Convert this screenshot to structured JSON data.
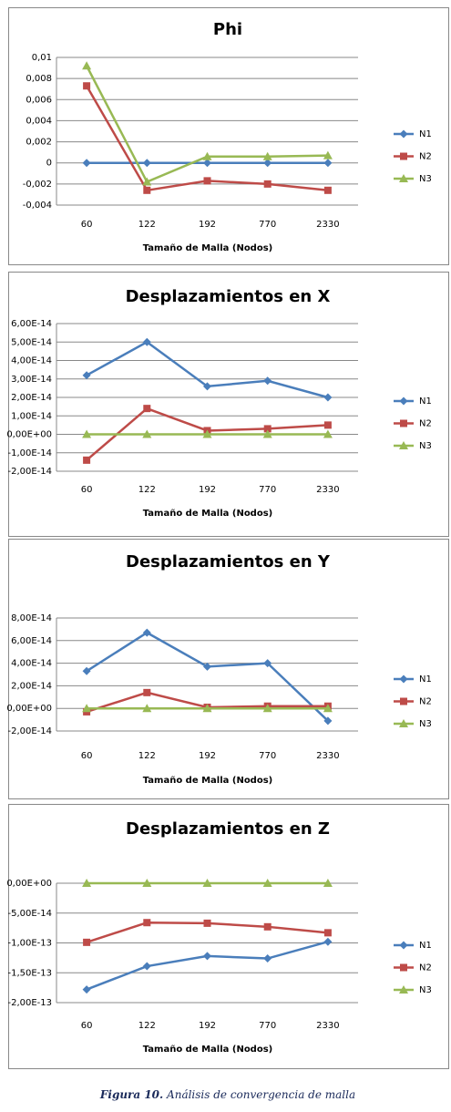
{
  "chart_data": [
    {
      "type": "line",
      "title": "Phi",
      "x_label": "Tamaño de Malla (Nodos)",
      "legend": "right",
      "grid": true,
      "categories": [
        "60",
        "122",
        "192",
        "770",
        "2330"
      ],
      "ylim": [
        -0.004,
        0.01
      ],
      "yticks": [
        {
          "value": -0.004,
          "label": "-0,004"
        },
        {
          "value": -0.002,
          "label": "-0,002"
        },
        0,
        {
          "value": 0.002,
          "label": "0,002"
        },
        {
          "value": 0.004,
          "label": "0,004"
        },
        {
          "value": 0.006,
          "label": "0,006"
        },
        {
          "value": 0.008,
          "label": "0,008"
        },
        {
          "value": 0.01,
          "label": "0,01"
        }
      ],
      "series": [
        {
          "name": "N1",
          "color": "#4a7ebb",
          "marker": "diamond",
          "values": [
            0,
            0,
            0,
            0,
            0
          ]
        },
        {
          "name": "N2",
          "color": "#be4b48",
          "marker": "square",
          "values": [
            0.0073,
            -0.0026,
            -0.0017,
            -0.002,
            -0.0026
          ]
        },
        {
          "name": "N3",
          "color": "#98b954",
          "marker": "triangle",
          "values": [
            0.0092,
            -0.0018,
            0.0006,
            0.0006,
            0.0007
          ]
        }
      ]
    },
    {
      "type": "line",
      "title": "Desplazamientos en X",
      "x_label": "Tamaño de Malla (Nodos)",
      "legend": "right",
      "grid": true,
      "categories": [
        "60",
        "122",
        "192",
        "770",
        "2330"
      ],
      "ylim": [
        -2e-14,
        6e-14
      ],
      "yticks": [
        {
          "value": -2e-14,
          "label": "-2,00E-14"
        },
        {
          "value": -1e-14,
          "label": "-1,00E-14"
        },
        {
          "value": 0,
          "label": "0,00E+00"
        },
        {
          "value": 1e-14,
          "label": "1,00E-14"
        },
        {
          "value": 2e-14,
          "label": "2,00E-14"
        },
        {
          "value": 3e-14,
          "label": "3,00E-14"
        },
        {
          "value": 4e-14,
          "label": "4,00E-14"
        },
        {
          "value": 5e-14,
          "label": "5,00E-14"
        },
        {
          "value": 6e-14,
          "label": "6,00E-14"
        }
      ],
      "series": [
        {
          "name": "N1",
          "color": "#4a7ebb",
          "marker": "diamond",
          "values": [
            3.2e-14,
            5e-14,
            2.6e-14,
            2.9e-14,
            2e-14
          ]
        },
        {
          "name": "N2",
          "color": "#be4b48",
          "marker": "square",
          "values": [
            -1.4e-14,
            1.4e-14,
            2e-15,
            3e-15,
            5e-15
          ]
        },
        {
          "name": "N3",
          "color": "#98b954",
          "marker": "triangle",
          "values": [
            0,
            0,
            0,
            0,
            0
          ]
        }
      ]
    },
    {
      "type": "line",
      "title": "Desplazamientos en Y",
      "x_label": "Tamaño de Malla (Nodos)",
      "legend": "right",
      "grid": true,
      "categories": [
        "60",
        "122",
        "192",
        "770",
        "2330"
      ],
      "ylim": [
        -2e-14,
        8e-14
      ],
      "yticks": [
        {
          "value": -2e-14,
          "label": "-2,00E-14"
        },
        {
          "value": 0,
          "label": "0,00E+00"
        },
        {
          "value": 2e-14,
          "label": "2,00E-14"
        },
        {
          "value": 4e-14,
          "label": "4,00E-14"
        },
        {
          "value": 6e-14,
          "label": "6,00E-14"
        },
        {
          "value": 8e-14,
          "label": "8,00E-14"
        }
      ],
      "series": [
        {
          "name": "N1",
          "color": "#4a7ebb",
          "marker": "diamond",
          "values": [
            3.3e-14,
            6.7e-14,
            3.7e-14,
            4e-14,
            -1.1e-14
          ]
        },
        {
          "name": "N2",
          "color": "#be4b48",
          "marker": "square",
          "values": [
            -3e-15,
            1.4e-14,
            1e-15,
            2e-15,
            2e-15
          ]
        },
        {
          "name": "N3",
          "color": "#98b954",
          "marker": "triangle",
          "values": [
            0,
            0,
            0,
            0,
            0
          ]
        }
      ]
    },
    {
      "type": "line",
      "title": "Desplazamientos en Z",
      "x_label": "Tamaño de Malla (Nodos)",
      "legend": "right",
      "grid": true,
      "categories": [
        "60",
        "122",
        "192",
        "770",
        "2330"
      ],
      "ylim": [
        -2e-13,
        0
      ],
      "yticks": [
        {
          "value": -2e-13,
          "label": "-2,00E-13"
        },
        {
          "value": -1.5e-13,
          "label": "-1,50E-13"
        },
        {
          "value": -1e-13,
          "label": "-1,00E-13"
        },
        {
          "value": -5e-14,
          "label": "-5,00E-14"
        },
        {
          "value": 0,
          "label": "0,00E+00"
        }
      ],
      "series": [
        {
          "name": "N1",
          "color": "#4a7ebb",
          "marker": "diamond",
          "values": [
            -1.78e-13,
            -1.39e-13,
            -1.22e-13,
            -1.26e-13,
            -9.8e-14
          ]
        },
        {
          "name": "N2",
          "color": "#be4b48",
          "marker": "square",
          "values": [
            -9.9e-14,
            -6.6e-14,
            -6.7e-14,
            -7.3e-14,
            -8.3e-14
          ]
        },
        {
          "name": "N3",
          "color": "#98b954",
          "marker": "triangle",
          "values": [
            0,
            0,
            0,
            0,
            0
          ]
        }
      ]
    }
  ],
  "caption": {
    "label": "Figura 10.",
    "text": "Análisis de convergencia de malla"
  }
}
